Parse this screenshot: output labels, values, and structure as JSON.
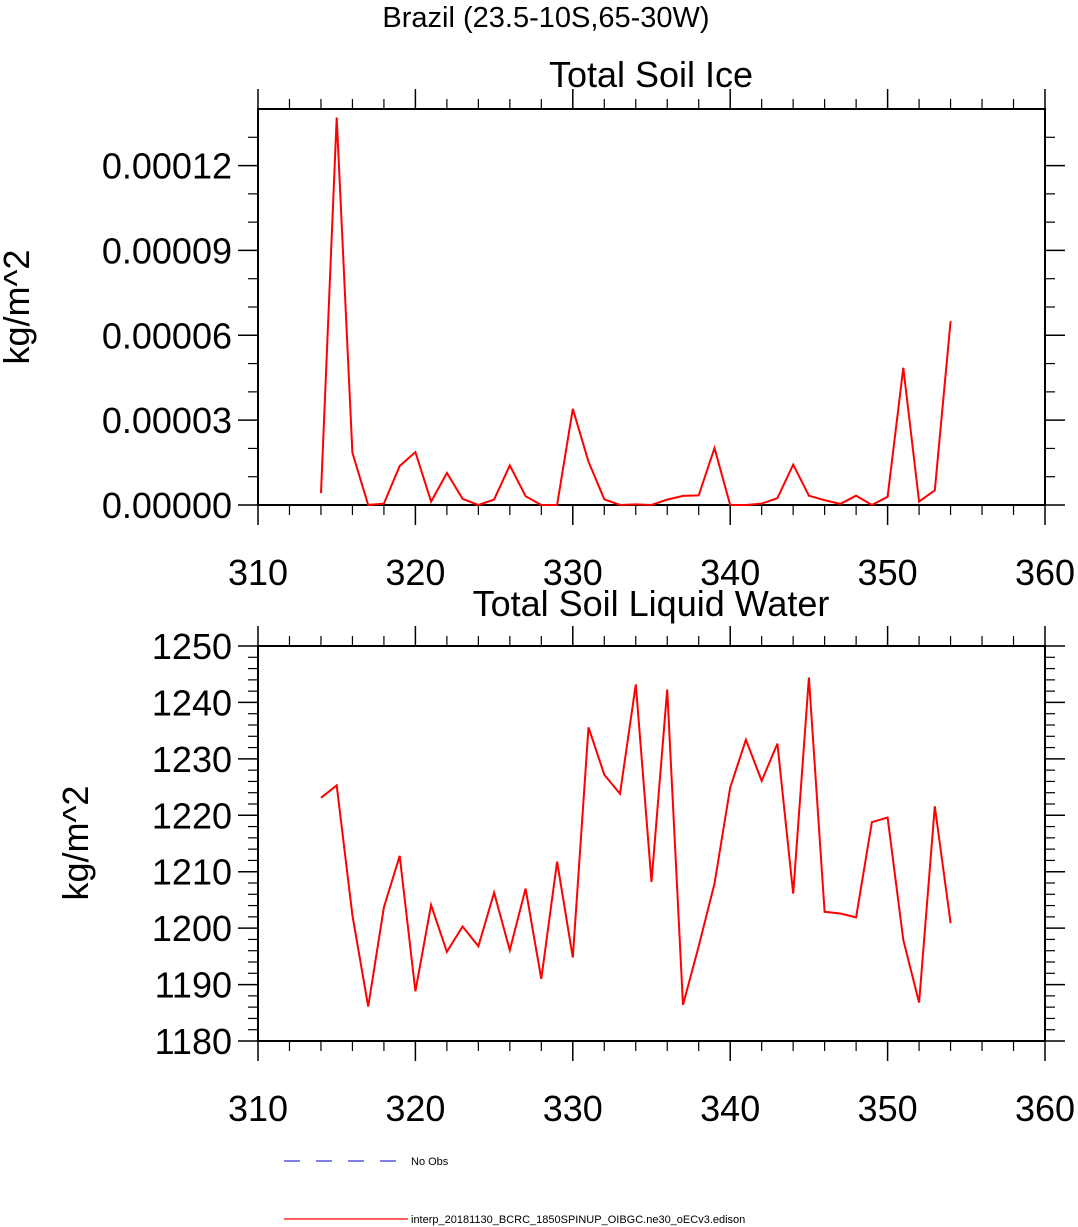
{
  "figure": {
    "title": "Brazil (23.5-10S,65-30W)"
  },
  "legend": {
    "entries": [
      {
        "label": "No Obs",
        "color": "#3333cc",
        "style": "dashed"
      },
      {
        "label": "interp_20181130_BCRC_1850SPINUP_OIBGC.ne30_oECv3.edison",
        "color": "#ff0000",
        "style": "solid"
      }
    ]
  },
  "chart_data": [
    {
      "type": "line",
      "title": "Total Soil Ice",
      "xlabel": "",
      "ylabel": "kg/m^2",
      "xlim": [
        310,
        360
      ],
      "ylim": [
        0,
        0.00014
      ],
      "x_ticks": [
        310,
        320,
        330,
        340,
        350,
        360
      ],
      "x_tick_labels": [
        "310",
        "320",
        "330",
        "340",
        "350",
        "360"
      ],
      "y_ticks": [
        0,
        3e-05,
        6e-05,
        9e-05,
        0.00012
      ],
      "y_tick_labels": [
        "0.00000",
        "0.00003",
        "0.00006",
        "0.00009",
        "0.00012"
      ],
      "y_minor_step": 1e-05,
      "grid": false,
      "series": [
        {
          "name": "interp_20181130_BCRC_1850SPINUP_OIBGC.ne30_oECv3.edison",
          "color": "#ff0000",
          "x": [
            314,
            315,
            316,
            317,
            318,
            319,
            320,
            321,
            322,
            323,
            324,
            325,
            326,
            327,
            328,
            329,
            330,
            331,
            332,
            333,
            334,
            335,
            336,
            337,
            338,
            339,
            340,
            341,
            342,
            343,
            344,
            345,
            346,
            347,
            348,
            349,
            350,
            351,
            352,
            353,
            354
          ],
          "values": [
            4.2e-06,
            0.000137,
            1.85e-05,
            0,
            5e-07,
            1.38e-05,
            1.87e-05,
            1.2e-06,
            1.13e-05,
            2.2e-06,
            0,
            1.9e-06,
            1.4e-05,
            3.1e-06,
            0,
            0,
            3.4e-05,
            1.53e-05,
            2e-06,
            0,
            2e-07,
            0,
            1.9e-06,
            3.2e-06,
            3.4e-06,
            2.01e-05,
            0,
            0,
            5e-07,
            2.4e-06,
            1.43e-05,
            3.3e-06,
            1.7e-06,
            4e-07,
            3.3e-06,
            0,
            2.9e-06,
            4.85e-05,
            1.2e-06,
            5.2e-06,
            6.5e-05
          ]
        }
      ]
    },
    {
      "type": "line",
      "title": "Total Soil Liquid Water",
      "xlabel": "",
      "ylabel": "kg/m^2",
      "xlim": [
        310,
        360
      ],
      "ylim": [
        1180,
        1250
      ],
      "x_ticks": [
        310,
        320,
        330,
        340,
        350,
        360
      ],
      "x_tick_labels": [
        "310",
        "320",
        "330",
        "340",
        "350",
        "360"
      ],
      "y_ticks": [
        1180,
        1190,
        1200,
        1210,
        1220,
        1230,
        1240,
        1250
      ],
      "y_tick_labels": [
        "1180",
        "1190",
        "1200",
        "1210",
        "1220",
        "1230",
        "1240",
        "1250"
      ],
      "y_minor_step": 2,
      "grid": false,
      "series": [
        {
          "name": "interp_20181130_BCRC_1850SPINUP_OIBGC.ne30_oECv3.edison",
          "color": "#ff0000",
          "x": [
            314,
            315,
            316,
            317,
            318,
            319,
            320,
            321,
            322,
            323,
            324,
            325,
            326,
            327,
            328,
            329,
            330,
            331,
            332,
            333,
            334,
            335,
            336,
            337,
            338,
            339,
            340,
            341,
            342,
            343,
            344,
            345,
            346,
            347,
            348,
            349,
            350,
            351,
            352,
            353,
            354
          ],
          "values": [
            1223.1,
            1225.3,
            1202.3,
            1186.1,
            1203.7,
            1212.8,
            1188.8,
            1204.1,
            1195.8,
            1200.3,
            1196.8,
            1206.3,
            1196.1,
            1207.0,
            1191.0,
            1211.8,
            1194.8,
            1235.6,
            1227.2,
            1223.8,
            1243.2,
            1208.2,
            1242.3,
            1186.4,
            1196.8,
            1207.9,
            1224.9,
            1233.4,
            1226.1,
            1232.7,
            1206.1,
            1244.4,
            1202.9,
            1202.6,
            1201.9,
            1218.8,
            1219.6,
            1197.9,
            1186.8,
            1221.6,
            1200.9
          ]
        }
      ]
    }
  ]
}
